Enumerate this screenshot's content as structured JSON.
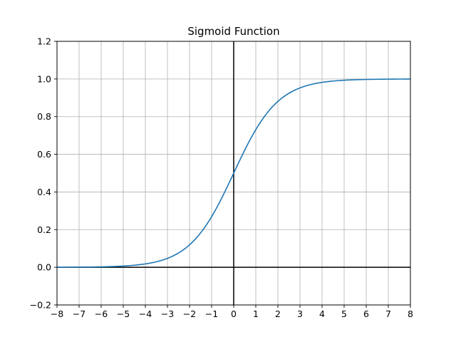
{
  "chart_data": {
    "type": "line",
    "title": "Sigmoid Function",
    "xlabel": "",
    "ylabel": "",
    "xlim": [
      -8,
      8
    ],
    "ylim": [
      -0.2,
      1.2
    ],
    "xticks": [
      -8,
      -7,
      -6,
      -5,
      -4,
      -3,
      -2,
      -1,
      0,
      1,
      2,
      3,
      4,
      5,
      6,
      7,
      8
    ],
    "xtick_labels": [
      "−8",
      "−7",
      "−6",
      "−5",
      "−4",
      "−3",
      "−2",
      "−1",
      "0",
      "1",
      "2",
      "3",
      "4",
      "5",
      "6",
      "7",
      "8"
    ],
    "yticks": [
      -0.2,
      0.0,
      0.2,
      0.4,
      0.6,
      0.8,
      1.0,
      1.2
    ],
    "ytick_labels": [
      "−0.2",
      "0.0",
      "0.2",
      "0.4",
      "0.6",
      "0.8",
      "1.0",
      "1.2"
    ],
    "grid": true,
    "axis_lines": [
      "x=0",
      "y=0"
    ],
    "series": [
      {
        "name": "sigmoid",
        "color": "#1f77b4",
        "x": [
          -8,
          -7,
          -6,
          -5,
          -4,
          -3,
          -2.5,
          -2,
          -1.5,
          -1,
          -0.5,
          0,
          0.5,
          1,
          1.5,
          2,
          2.5,
          3,
          4,
          5,
          6,
          7,
          8
        ],
        "y": [
          0.0003,
          0.0009,
          0.0025,
          0.0067,
          0.018,
          0.0474,
          0.0759,
          0.1192,
          0.1824,
          0.2689,
          0.3775,
          0.5,
          0.6225,
          0.7311,
          0.8176,
          0.8808,
          0.9241,
          0.9526,
          0.982,
          0.9933,
          0.9975,
          0.9991,
          0.9997
        ]
      }
    ]
  }
}
